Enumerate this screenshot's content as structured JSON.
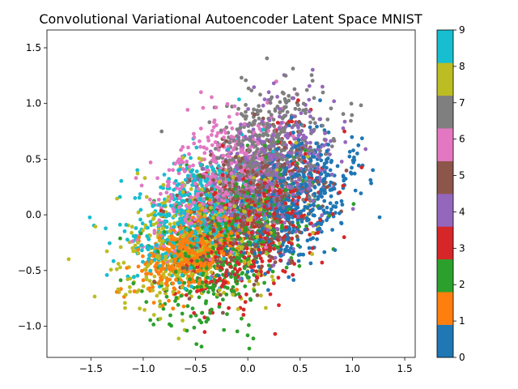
{
  "chart_data": {
    "type": "scatter",
    "title": "Convolutional Variational Autoencoder Latent Space MNIST",
    "xlabel": "",
    "ylabel": "",
    "xlim": [
      -1.92,
      1.6
    ],
    "ylim": [
      -1.28,
      1.66
    ],
    "xticks": [
      -1.5,
      -1.0,
      -0.5,
      0.0,
      0.5,
      1.0,
      1.5
    ],
    "xtick_labels": [
      "−1.5",
      "−1.0",
      "−0.5",
      "0.0",
      "0.5",
      "1.0",
      "1.5"
    ],
    "yticks": [
      -1.0,
      -0.5,
      0.0,
      0.5,
      1.0,
      1.5
    ],
    "ytick_labels": [
      "−1.0",
      "−0.5",
      "0.0",
      "0.5",
      "1.0",
      "1.5"
    ],
    "grid": false,
    "point_count": 5000,
    "colorbar": {
      "colormap": "tab10",
      "range": [
        0,
        9
      ],
      "ticks": [
        0,
        1,
        2,
        3,
        4,
        5,
        6,
        7,
        8,
        9
      ],
      "tick_labels": [
        "0",
        "1",
        "2",
        "3",
        "4",
        "5",
        "6",
        "7",
        "8",
        "9"
      ],
      "colors": [
        "#1f77b4",
        "#ff7f0e",
        "#2ca02c",
        "#d62728",
        "#9467bd",
        "#8c564b",
        "#e377c2",
        "#7f7f7f",
        "#bcbd22",
        "#17becf"
      ]
    },
    "series": [
      {
        "label": "0",
        "cx": 0.45,
        "cy": 0.1,
        "sx": 0.28,
        "sy": 0.3,
        "rho": 0.45
      },
      {
        "label": "1",
        "cx": -0.55,
        "cy": -0.35,
        "sx": 0.22,
        "sy": 0.18,
        "rho": 0.45
      },
      {
        "label": "2",
        "cx": -0.2,
        "cy": -0.25,
        "sx": 0.35,
        "sy": 0.35,
        "rho": 0.4
      },
      {
        "label": "3",
        "cx": 0.05,
        "cy": -0.1,
        "sx": 0.32,
        "sy": 0.35,
        "rho": 0.4
      },
      {
        "label": "4",
        "cx": 0.2,
        "cy": 0.35,
        "sx": 0.3,
        "sy": 0.3,
        "rho": 0.4
      },
      {
        "label": "5",
        "cx": 0.0,
        "cy": 0.05,
        "sx": 0.32,
        "sy": 0.32,
        "rho": 0.4
      },
      {
        "label": "6",
        "cx": -0.3,
        "cy": 0.3,
        "sx": 0.3,
        "sy": 0.3,
        "rho": 0.4
      },
      {
        "label": "7",
        "cx": 0.15,
        "cy": 0.5,
        "sx": 0.3,
        "sy": 0.3,
        "rho": 0.4
      },
      {
        "label": "8",
        "cx": -0.45,
        "cy": -0.2,
        "sx": 0.4,
        "sy": 0.32,
        "rho": 0.4
      },
      {
        "label": "9",
        "cx": -0.5,
        "cy": 0.0,
        "sx": 0.3,
        "sy": 0.28,
        "rho": 0.4
      }
    ]
  }
}
